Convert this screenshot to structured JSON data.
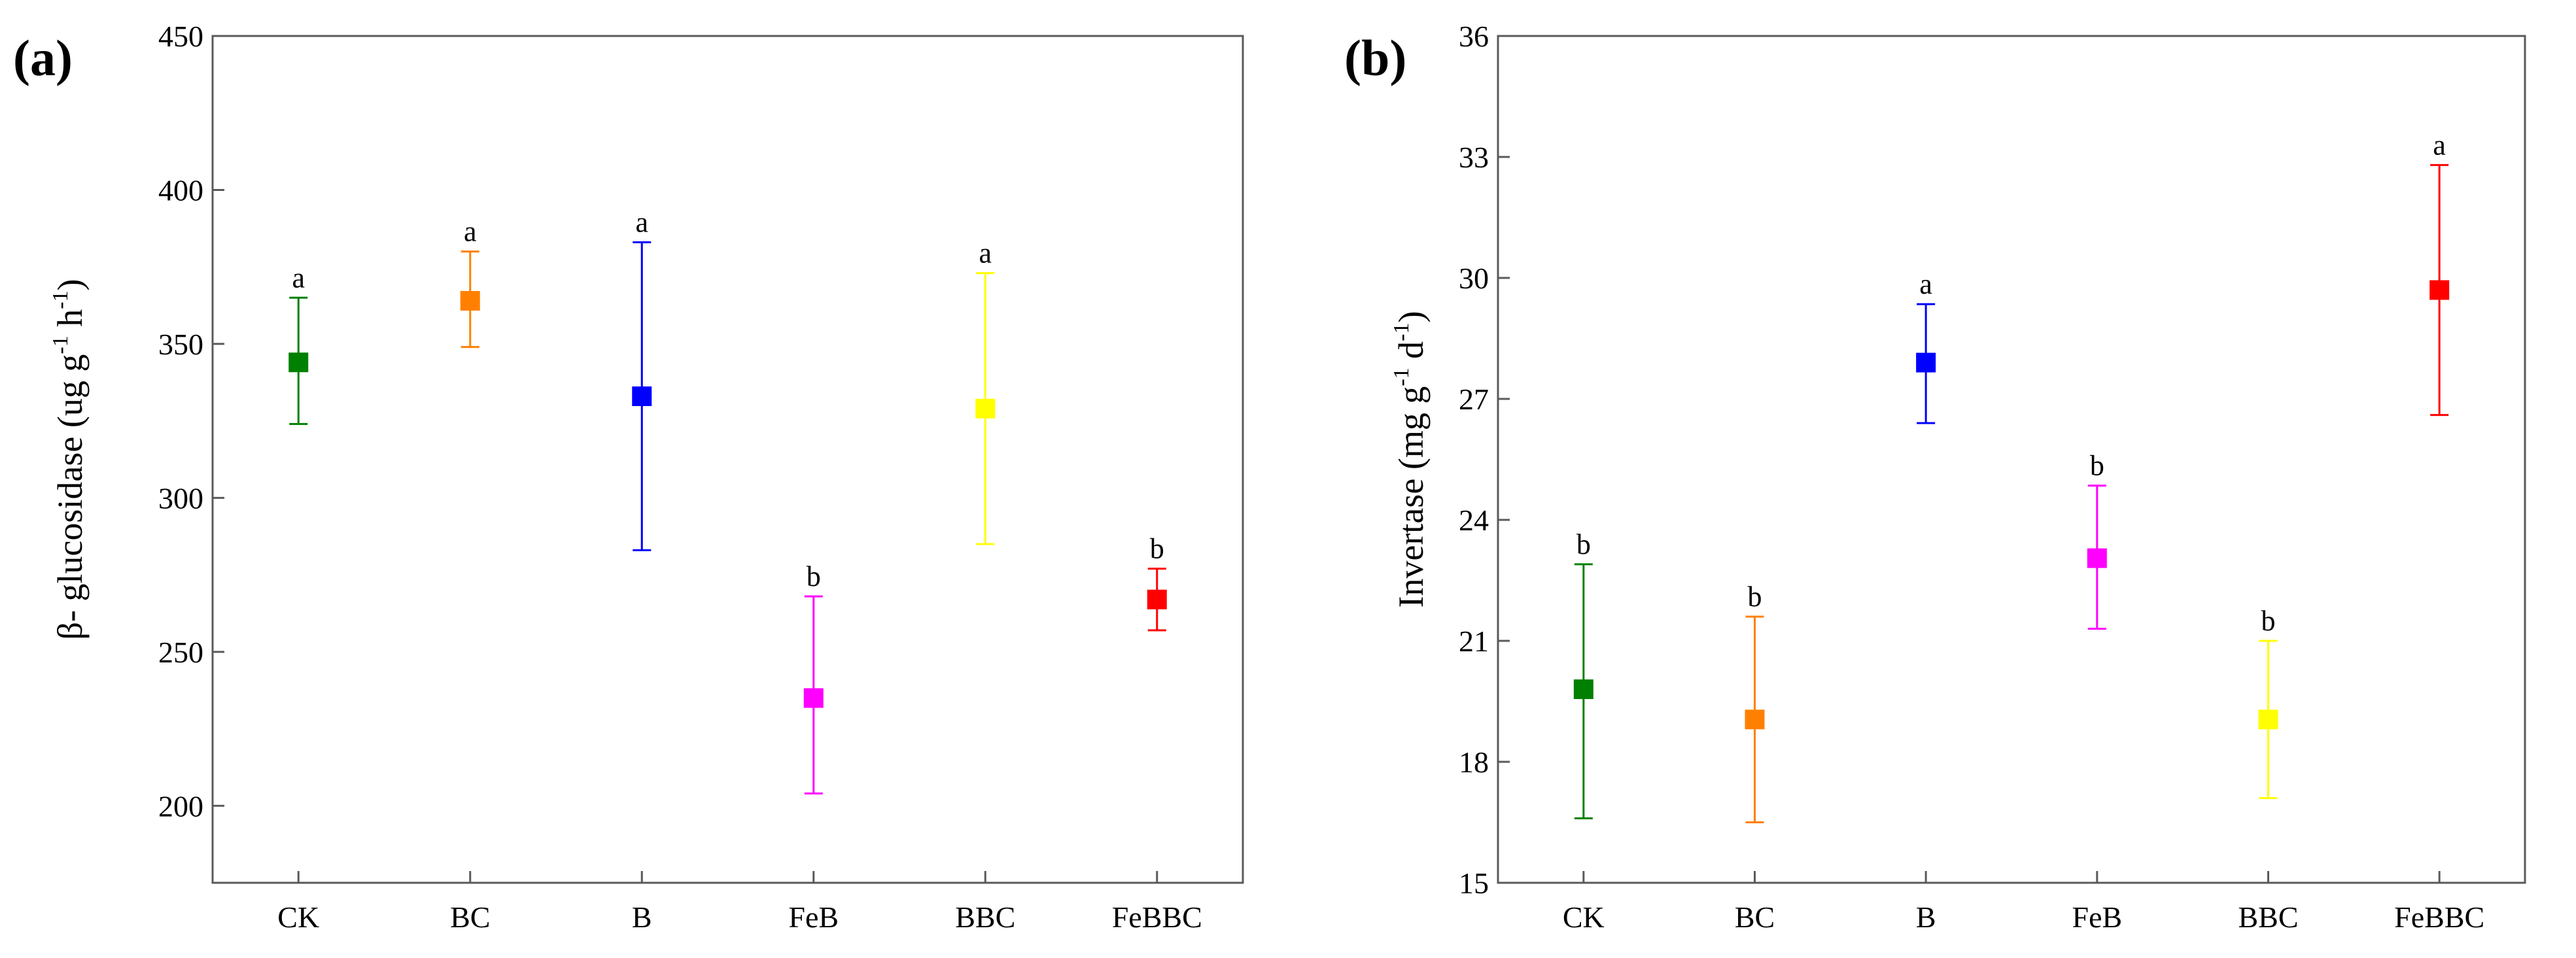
{
  "chart_data": [
    {
      "panel_label": "(a)",
      "type": "scatter",
      "ylabel": "β- glucosidase (ug g",
      "ylabel_sup1": "-1",
      "ylabel_mid": " h",
      "ylabel_sup2": "-1",
      "ylabel_end": ")",
      "xlabel": "",
      "ylim": [
        175,
        450
      ],
      "yticks": [
        200,
        250,
        300,
        350,
        400,
        450
      ],
      "categories": [
        "CK",
        "BC",
        "B",
        "FeB",
        "BBC",
        "FeBBC"
      ],
      "points": [
        {
          "category": "CK",
          "value": 344,
          "low": 324,
          "high": 365,
          "label": "a",
          "color": "#008000"
        },
        {
          "category": "BC",
          "value": 364,
          "low": 349,
          "high": 380,
          "label": "a",
          "color": "#ff8000"
        },
        {
          "category": "B",
          "value": 333,
          "low": 283,
          "high": 383,
          "label": "a",
          "color": "#0000ff"
        },
        {
          "category": "FeB",
          "value": 235,
          "low": 204,
          "high": 268,
          "label": "b",
          "color": "#ff00ff"
        },
        {
          "category": "BBC",
          "value": 329,
          "low": 285,
          "high": 373,
          "label": "a",
          "color": "#ffff00"
        },
        {
          "category": "FeBBC",
          "value": 267,
          "low": 257,
          "high": 277,
          "label": "b",
          "color": "#ff0000"
        }
      ]
    },
    {
      "panel_label": "(b)",
      "type": "scatter",
      "ylabel": "Invertase (mg g",
      "ylabel_sup1": "-1",
      "ylabel_mid": " d",
      "ylabel_sup2": "-1",
      "ylabel_end": ")",
      "xlabel": "",
      "ylim": [
        15,
        36
      ],
      "yticks": [
        15,
        18,
        21,
        24,
        27,
        30,
        33,
        36
      ],
      "categories": [
        "CK",
        "BC",
        "B",
        "FeB",
        "BBC",
        "FeBBC"
      ],
      "points": [
        {
          "category": "CK",
          "value": 19.8,
          "low": 16.6,
          "high": 22.9,
          "label": "b",
          "color": "#008000"
        },
        {
          "category": "BC",
          "value": 19.05,
          "low": 16.5,
          "high": 21.6,
          "label": "b",
          "color": "#ff8000"
        },
        {
          "category": "B",
          "value": 27.9,
          "low": 26.4,
          "high": 29.35,
          "label": "a",
          "color": "#0000ff"
        },
        {
          "category": "FeB",
          "value": 23.05,
          "low": 21.3,
          "high": 24.85,
          "label": "b",
          "color": "#ff00ff"
        },
        {
          "category": "BBC",
          "value": 19.05,
          "low": 17.1,
          "high": 21.0,
          "label": "b",
          "color": "#ffff00"
        },
        {
          "category": "FeBBC",
          "value": 29.7,
          "low": 26.6,
          "high": 32.8,
          "label": "a",
          "color": "#ff0000"
        }
      ]
    }
  ]
}
